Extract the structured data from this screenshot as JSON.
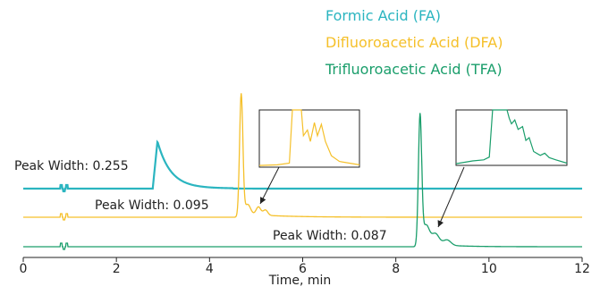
{
  "chart_data": {
    "type": "line",
    "xlabel": "Time, min",
    "ylabel": "",
    "xlim": [
      0,
      12
    ],
    "xticks": [
      "0",
      "2",
      "4",
      "6",
      "8",
      "10",
      "12"
    ],
    "grid": false,
    "legend_placement": "top-right",
    "series": [
      {
        "name": "Formic Acid (FA)",
        "color": "#2bb5c0",
        "peak_time": 2.85,
        "annotation": "Peak Width: 0.255"
      },
      {
        "name": "Difluoroacetic Acid (DFA)",
        "color": "#f5c02a",
        "peak_time": 4.68,
        "annotation": "Peak Width: 0.095"
      },
      {
        "name": "Trifluoroacetic Acid (TFA)",
        "color": "#1a9e6b",
        "peak_time": 8.52,
        "annotation": "Peak Width: 0.087"
      }
    ]
  }
}
